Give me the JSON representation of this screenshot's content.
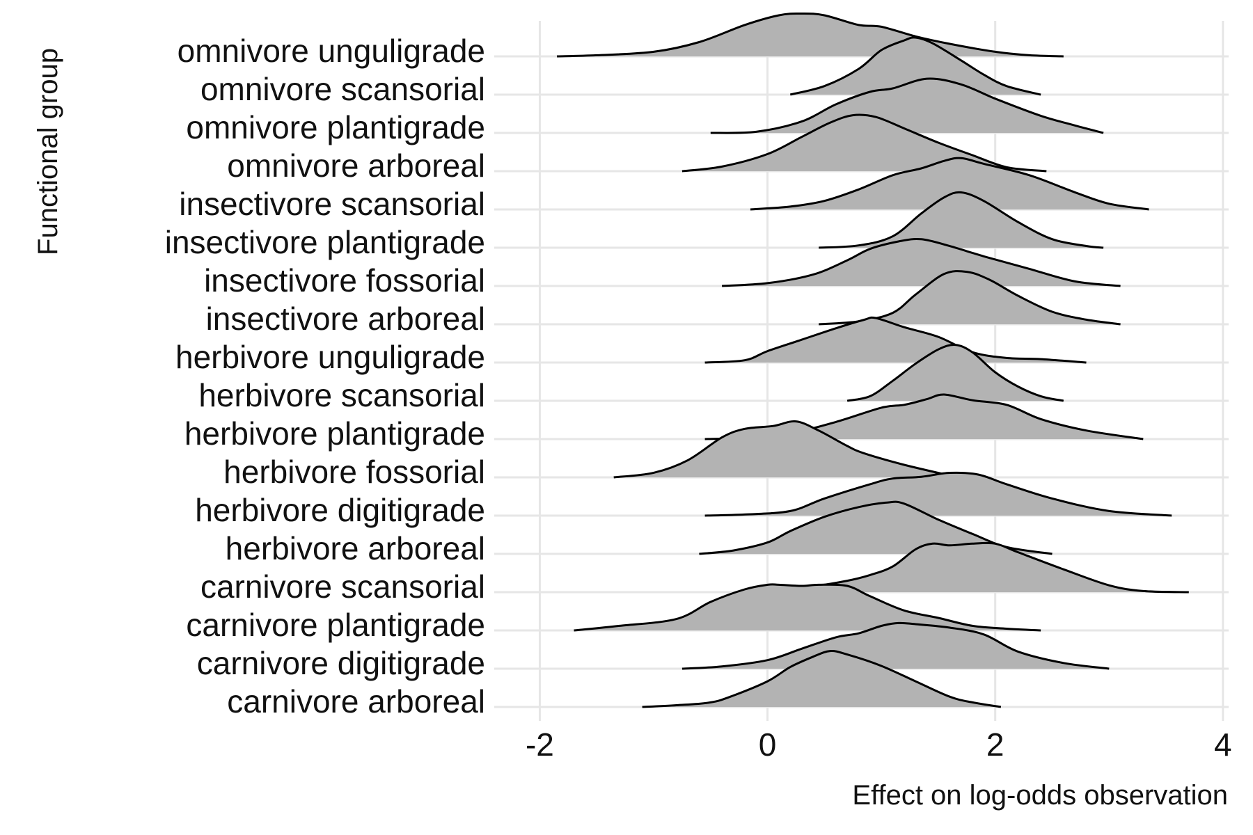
{
  "chart_data": {
    "type": "ridgeline",
    "xlabel": "Effect on log-odds observation",
    "ylabel": "Functional group",
    "xlim": [
      -2.4,
      4.05
    ],
    "xticks": [
      -2,
      0,
      2,
      4
    ],
    "xtick_labels": [
      "-2",
      "0",
      "2",
      "4"
    ],
    "grid": true,
    "fill_color": "#b3b3b3",
    "line_color": "#000000",
    "grid_color": "#e6e6e6",
    "categories": [
      "carnivore arboreal",
      "carnivore digitigrade",
      "carnivore plantigrade",
      "carnivore scansorial",
      "herbivore arboreal",
      "herbivore digitigrade",
      "herbivore fossorial",
      "herbivore plantigrade",
      "herbivore scansorial",
      "herbivore unguligrade",
      "insectivore arboreal",
      "insectivore fossorial",
      "insectivore plantigrade",
      "insectivore scansorial",
      "omnivore arboreal",
      "omnivore plantigrade",
      "omnivore scansorial",
      "omnivore unguligrade"
    ],
    "series": [
      {
        "range": [
          -1.1,
          2.05
        ],
        "points": [
          [
            -1.1,
            0.0
          ],
          [
            -0.8,
            0.03
          ],
          [
            -0.5,
            0.08
          ],
          [
            -0.3,
            0.2
          ],
          [
            0,
            0.45
          ],
          [
            0.2,
            0.7
          ],
          [
            0.4,
            0.88
          ],
          [
            0.55,
            0.98
          ],
          [
            0.7,
            0.92
          ],
          [
            1.0,
            0.72
          ],
          [
            1.3,
            0.45
          ],
          [
            1.6,
            0.18
          ],
          [
            1.8,
            0.08
          ],
          [
            2.05,
            0.0
          ]
        ]
      },
      {
        "range": [
          -0.75,
          3.0
        ],
        "points": [
          [
            -0.75,
            0.0
          ],
          [
            -0.4,
            0.04
          ],
          [
            0,
            0.15
          ],
          [
            0.3,
            0.35
          ],
          [
            0.6,
            0.55
          ],
          [
            0.8,
            0.62
          ],
          [
            1.0,
            0.75
          ],
          [
            1.15,
            0.8
          ],
          [
            1.3,
            0.78
          ],
          [
            1.6,
            0.72
          ],
          [
            1.9,
            0.6
          ],
          [
            2.2,
            0.3
          ],
          [
            2.6,
            0.1
          ],
          [
            3.0,
            0.0
          ]
        ]
      },
      {
        "range": [
          -1.7,
          2.4
        ],
        "points": [
          [
            -1.7,
            0.0
          ],
          [
            -1.3,
            0.08
          ],
          [
            -0.8,
            0.2
          ],
          [
            -0.5,
            0.5
          ],
          [
            -0.2,
            0.72
          ],
          [
            0,
            0.8
          ],
          [
            0.1,
            0.8
          ],
          [
            0.3,
            0.78
          ],
          [
            0.45,
            0.8
          ],
          [
            0.7,
            0.78
          ],
          [
            0.9,
            0.6
          ],
          [
            1.2,
            0.35
          ],
          [
            1.5,
            0.22
          ],
          [
            1.8,
            0.08
          ],
          [
            2.1,
            0.03
          ],
          [
            2.4,
            0.0
          ]
        ]
      },
      {
        "range": [
          0,
          3.7
        ],
        "points": [
          [
            0,
            0.0
          ],
          [
            0.4,
            0.1
          ],
          [
            0.7,
            0.2
          ],
          [
            0.9,
            0.3
          ],
          [
            1.1,
            0.45
          ],
          [
            1.3,
            0.75
          ],
          [
            1.45,
            0.85
          ],
          [
            1.6,
            0.82
          ],
          [
            1.8,
            0.85
          ],
          [
            2.0,
            0.85
          ],
          [
            2.2,
            0.7
          ],
          [
            2.6,
            0.4
          ],
          [
            3.0,
            0.12
          ],
          [
            3.3,
            0.02
          ],
          [
            3.7,
            0.0
          ]
        ]
      },
      {
        "range": [
          -0.6,
          2.5
        ],
        "points": [
          [
            -0.6,
            0.0
          ],
          [
            -0.3,
            0.06
          ],
          [
            0,
            0.2
          ],
          [
            0.2,
            0.4
          ],
          [
            0.5,
            0.65
          ],
          [
            0.8,
            0.82
          ],
          [
            1.05,
            0.9
          ],
          [
            1.2,
            0.88
          ],
          [
            1.5,
            0.6
          ],
          [
            1.8,
            0.35
          ],
          [
            2.1,
            0.12
          ],
          [
            2.5,
            0.0
          ]
        ]
      },
      {
        "range": [
          -0.55,
          3.55
        ],
        "points": [
          [
            -0.55,
            0.0
          ],
          [
            -0.2,
            0.02
          ],
          [
            0.2,
            0.08
          ],
          [
            0.5,
            0.3
          ],
          [
            0.9,
            0.55
          ],
          [
            1.1,
            0.65
          ],
          [
            1.35,
            0.68
          ],
          [
            1.6,
            0.75
          ],
          [
            1.85,
            0.72
          ],
          [
            2.1,
            0.55
          ],
          [
            2.5,
            0.3
          ],
          [
            3.0,
            0.08
          ],
          [
            3.55,
            0.0
          ]
        ]
      },
      {
        "range": [
          -1.35,
          1.67
        ],
        "points": [
          [
            -1.35,
            0.0
          ],
          [
            -1.0,
            0.08
          ],
          [
            -0.7,
            0.3
          ],
          [
            -0.4,
            0.7
          ],
          [
            -0.2,
            0.85
          ],
          [
            0.05,
            0.9
          ],
          [
            0.25,
            0.98
          ],
          [
            0.45,
            0.82
          ],
          [
            0.7,
            0.55
          ],
          [
            0.85,
            0.42
          ],
          [
            1.2,
            0.22
          ],
          [
            1.67,
            0.0
          ]
        ]
      },
      {
        "range": [
          -0.55,
          3.3
        ],
        "points": [
          [
            -0.55,
            0.0
          ],
          [
            -0.2,
            0.02
          ],
          [
            0.2,
            0.1
          ],
          [
            0.6,
            0.3
          ],
          [
            1.0,
            0.55
          ],
          [
            1.2,
            0.6
          ],
          [
            1.4,
            0.7
          ],
          [
            1.55,
            0.78
          ],
          [
            1.8,
            0.68
          ],
          [
            2.1,
            0.6
          ],
          [
            2.4,
            0.35
          ],
          [
            2.8,
            0.15
          ],
          [
            3.3,
            0.0
          ]
        ]
      },
      {
        "range": [
          0.7,
          2.6
        ],
        "points": [
          [
            0.7,
            0.0
          ],
          [
            0.9,
            0.08
          ],
          [
            1.1,
            0.35
          ],
          [
            1.3,
            0.65
          ],
          [
            1.5,
            0.9
          ],
          [
            1.65,
            0.98
          ],
          [
            1.8,
            0.85
          ],
          [
            2.0,
            0.5
          ],
          [
            2.2,
            0.25
          ],
          [
            2.4,
            0.08
          ],
          [
            2.6,
            0.0
          ]
        ]
      },
      {
        "range": [
          -0.55,
          2.8
        ],
        "points": [
          [
            -0.55,
            0.0
          ],
          [
            -0.2,
            0.04
          ],
          [
            0,
            0.2
          ],
          [
            0.3,
            0.4
          ],
          [
            0.6,
            0.6
          ],
          [
            0.85,
            0.75
          ],
          [
            0.95,
            0.78
          ],
          [
            1.2,
            0.62
          ],
          [
            1.5,
            0.45
          ],
          [
            1.8,
            0.18
          ],
          [
            2.1,
            0.08
          ],
          [
            2.4,
            0.06
          ],
          [
            2.8,
            0.0
          ]
        ]
      },
      {
        "range": [
          0.45,
          3.1
        ],
        "points": [
          [
            0.45,
            0.0
          ],
          [
            0.8,
            0.05
          ],
          [
            1.1,
            0.2
          ],
          [
            1.3,
            0.52
          ],
          [
            1.55,
            0.88
          ],
          [
            1.75,
            0.92
          ],
          [
            1.95,
            0.78
          ],
          [
            2.2,
            0.5
          ],
          [
            2.5,
            0.22
          ],
          [
            2.8,
            0.08
          ],
          [
            3.1,
            0.0
          ]
        ]
      },
      {
        "range": [
          -0.4,
          3.1
        ],
        "points": [
          [
            -0.4,
            0.0
          ],
          [
            0,
            0.05
          ],
          [
            0.4,
            0.2
          ],
          [
            0.7,
            0.45
          ],
          [
            0.9,
            0.65
          ],
          [
            1.15,
            0.78
          ],
          [
            1.35,
            0.82
          ],
          [
            1.6,
            0.7
          ],
          [
            1.9,
            0.52
          ],
          [
            2.3,
            0.3
          ],
          [
            2.7,
            0.08
          ],
          [
            3.1,
            0.0
          ]
        ]
      },
      {
        "range": [
          0.45,
          2.95
        ],
        "points": [
          [
            0.45,
            0.0
          ],
          [
            0.8,
            0.04
          ],
          [
            1.1,
            0.2
          ],
          [
            1.35,
            0.6
          ],
          [
            1.55,
            0.88
          ],
          [
            1.7,
            0.97
          ],
          [
            1.9,
            0.82
          ],
          [
            2.2,
            0.45
          ],
          [
            2.5,
            0.15
          ],
          [
            2.8,
            0.03
          ],
          [
            2.95,
            0.0
          ]
        ]
      },
      {
        "range": [
          -0.15,
          3.35
        ],
        "points": [
          [
            -0.15,
            0.0
          ],
          [
            0.2,
            0.05
          ],
          [
            0.5,
            0.15
          ],
          [
            0.8,
            0.35
          ],
          [
            1.1,
            0.6
          ],
          [
            1.35,
            0.72
          ],
          [
            1.55,
            0.85
          ],
          [
            1.7,
            0.9
          ],
          [
            1.9,
            0.8
          ],
          [
            2.3,
            0.6
          ],
          [
            2.7,
            0.3
          ],
          [
            3.0,
            0.1
          ],
          [
            3.35,
            0.0
          ]
        ]
      },
      {
        "range": [
          -0.75,
          2.45
        ],
        "points": [
          [
            -0.75,
            0.0
          ],
          [
            -0.4,
            0.08
          ],
          [
            0,
            0.3
          ],
          [
            0.3,
            0.6
          ],
          [
            0.55,
            0.85
          ],
          [
            0.75,
            0.98
          ],
          [
            0.95,
            0.95
          ],
          [
            1.2,
            0.75
          ],
          [
            1.5,
            0.5
          ],
          [
            1.8,
            0.28
          ],
          [
            2.1,
            0.07
          ],
          [
            2.45,
            0.0
          ]
        ]
      },
      {
        "range": [
          -0.5,
          2.95
        ],
        "points": [
          [
            -0.5,
            0.0
          ],
          [
            -0.1,
            0.02
          ],
          [
            0.3,
            0.2
          ],
          [
            0.6,
            0.5
          ],
          [
            0.9,
            0.72
          ],
          [
            1.1,
            0.78
          ],
          [
            1.4,
            0.95
          ],
          [
            1.7,
            0.85
          ],
          [
            2.0,
            0.6
          ],
          [
            2.4,
            0.3
          ],
          [
            2.7,
            0.13
          ],
          [
            2.95,
            0.0
          ]
        ]
      },
      {
        "range": [
          0.2,
          2.4
        ],
        "points": [
          [
            0.2,
            0.0
          ],
          [
            0.5,
            0.15
          ],
          [
            0.8,
            0.45
          ],
          [
            1.0,
            0.78
          ],
          [
            1.2,
            0.95
          ],
          [
            1.3,
            1.0
          ],
          [
            1.45,
            0.9
          ],
          [
            1.7,
            0.6
          ],
          [
            1.9,
            0.35
          ],
          [
            2.1,
            0.15
          ],
          [
            2.4,
            0.0
          ]
        ]
      },
      {
        "range": [
          -1.85,
          2.6
        ],
        "points": [
          [
            -1.85,
            0.0
          ],
          [
            -1.5,
            0.02
          ],
          [
            -1.0,
            0.08
          ],
          [
            -0.6,
            0.25
          ],
          [
            -0.2,
            0.55
          ],
          [
            0.1,
            0.72
          ],
          [
            0.3,
            0.75
          ],
          [
            0.5,
            0.72
          ],
          [
            0.8,
            0.55
          ],
          [
            1.0,
            0.52
          ],
          [
            1.3,
            0.35
          ],
          [
            1.6,
            0.22
          ],
          [
            2.0,
            0.08
          ],
          [
            2.3,
            0.02
          ],
          [
            2.6,
            0.0
          ]
        ]
      }
    ]
  }
}
